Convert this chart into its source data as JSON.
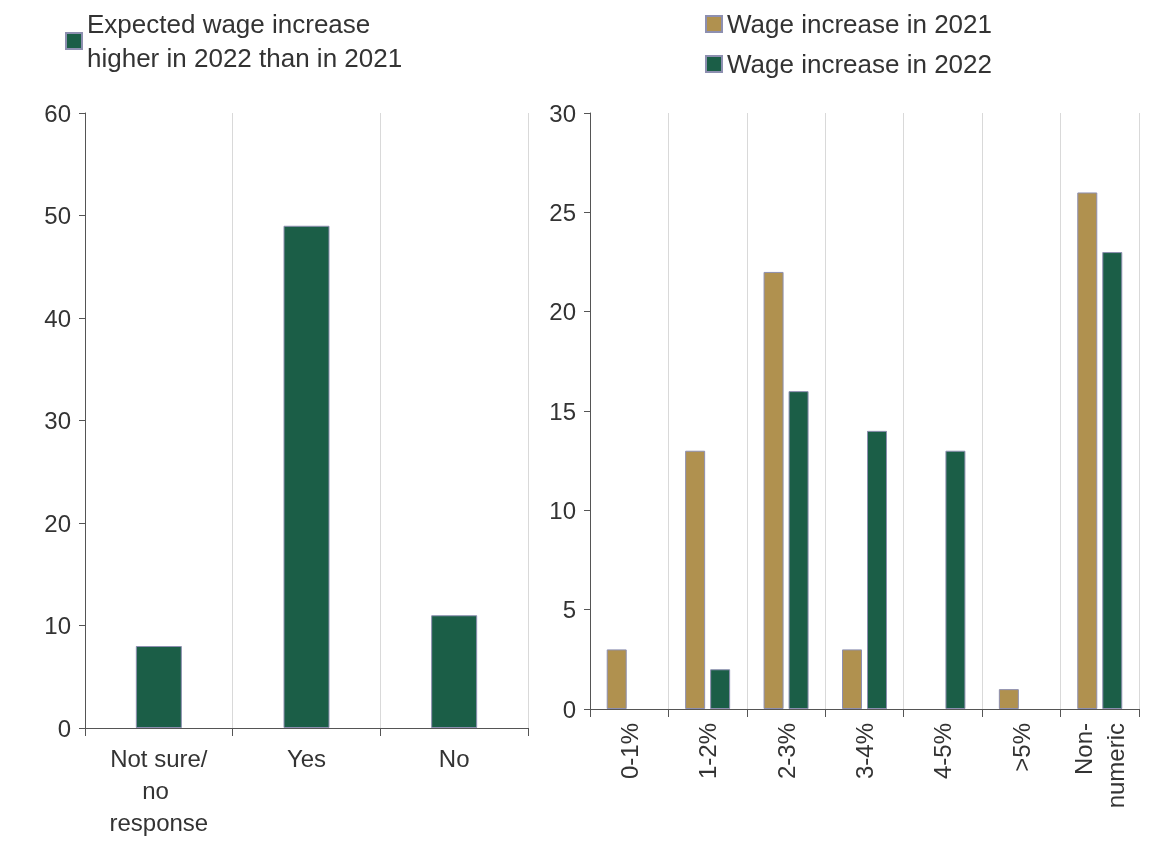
{
  "chart_data": [
    {
      "type": "bar",
      "categories": [
        "Not sure/no response",
        "Yes",
        "No"
      ],
      "series": [
        {
          "name": "Expected wage increase higher in 2022 than in 2021",
          "color": "#1b5e47",
          "values": [
            8,
            49,
            11
          ]
        }
      ],
      "ylim": [
        0,
        60
      ],
      "yticks": [
        0,
        10,
        20,
        30,
        40,
        50,
        60
      ],
      "grid": "x",
      "legend": "top left"
    },
    {
      "type": "bar",
      "categories": [
        "0-1%",
        "1-2%",
        "2-3%",
        "3-4%",
        "4-5%",
        ">5%",
        "Non-numeric"
      ],
      "series": [
        {
          "name": "Wage increase in 2021",
          "color": "#b0914f",
          "values": [
            3,
            13,
            22,
            3,
            null,
            1,
            26
          ]
        },
        {
          "name": "Wage increase in 2022",
          "color": "#1b5e47",
          "values": [
            null,
            2,
            16,
            14,
            13,
            null,
            23
          ]
        }
      ],
      "ylim": [
        0,
        30
      ],
      "yticks": [
        0,
        5,
        10,
        15,
        20,
        25,
        30
      ],
      "grid": "x",
      "legend": "top"
    }
  ]
}
